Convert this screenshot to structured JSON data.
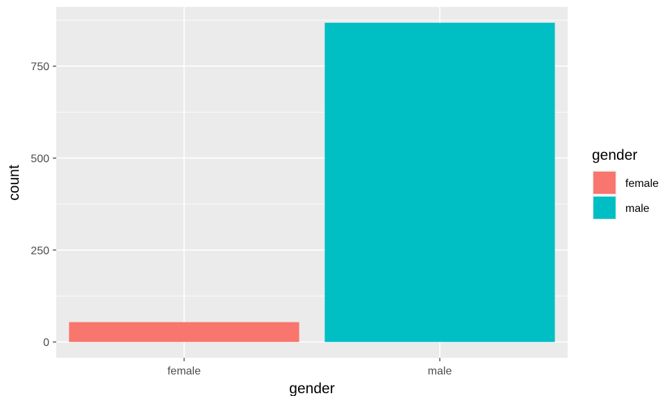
{
  "chart_data": {
    "type": "bar",
    "title": "",
    "xlabel": "gender",
    "ylabel": "count",
    "categories": [
      "female",
      "male"
    ],
    "values": [
      54,
      868
    ],
    "colors": [
      "#F8766D",
      "#00BFC4"
    ],
    "ylim": [
      -43,
      911
    ],
    "yticks": [
      0,
      250,
      500,
      750
    ],
    "ytick_labels": [
      "0",
      "250",
      "500",
      "750"
    ],
    "grid": true,
    "panel_background": "#EBEBEB",
    "gridline_color": "#FFFFFF",
    "legend": {
      "title": "gender",
      "position": "right",
      "entries": [
        "female",
        "male"
      ]
    }
  }
}
